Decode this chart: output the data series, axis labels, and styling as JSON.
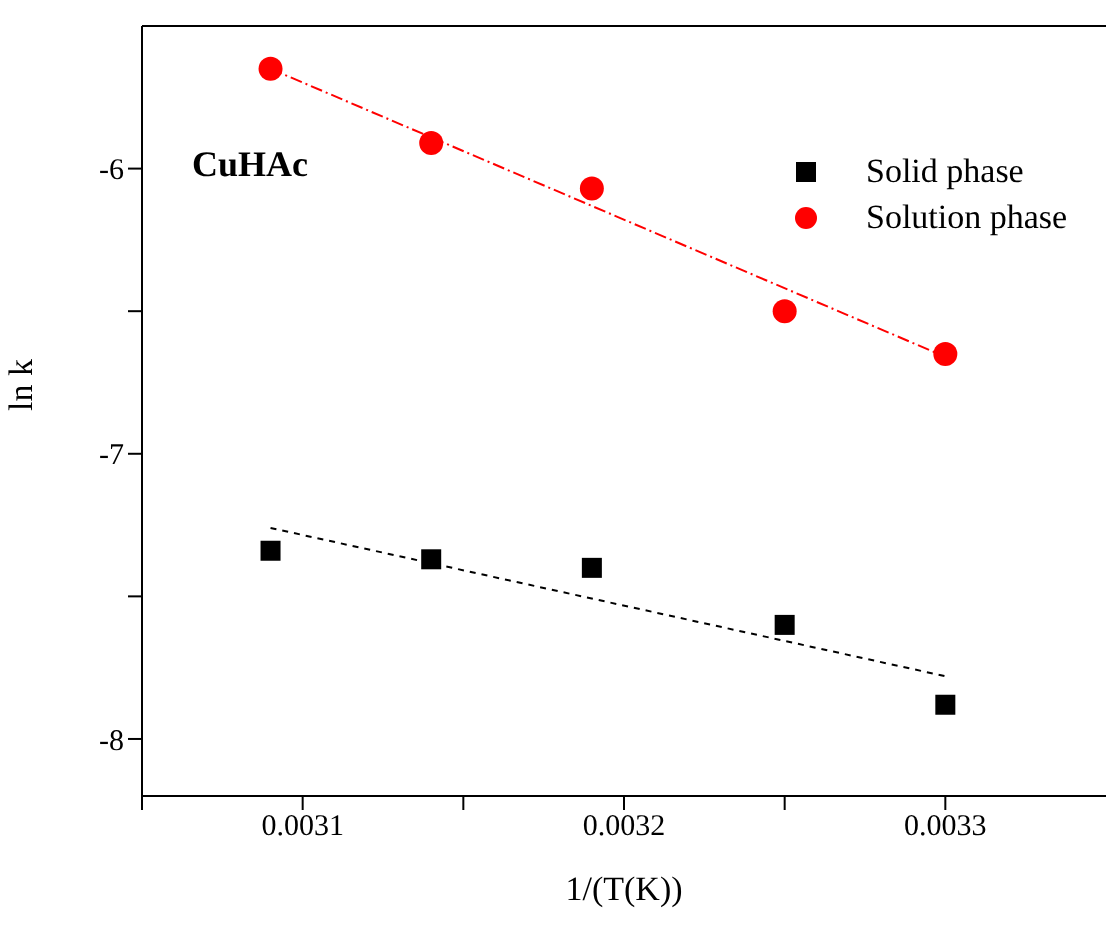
{
  "chart_data": {
    "type": "scatter",
    "xlabel": "1/(T(K))",
    "ylabel": "ln k",
    "annotations": [
      "CuHAc"
    ],
    "xlim": [
      0.00305,
      0.00335
    ],
    "xticks": [
      {
        "value": 0.00305,
        "label": null
      },
      0.0031,
      {
        "value": 0.00315,
        "label": null
      },
      0.0032,
      {
        "value": 0.00325,
        "label": null
      },
      0.0033
    ],
    "ylim": [
      -8.2,
      -5.5
    ],
    "yticks": [
      -8,
      {
        "value": -7.5,
        "label": null
      },
      -7,
      {
        "value": -6.5,
        "label": null
      },
      -6
    ],
    "grid": false,
    "legend": "top right",
    "series": [
      {
        "name": "Solid phase",
        "marker": "square",
        "color": "#000000",
        "x": [
          0.00309,
          0.00314,
          0.00319,
          0.00325,
          0.0033
        ],
        "values": [
          -7.34,
          -7.37,
          -7.4,
          -7.6,
          -7.88
        ]
      },
      {
        "name": "Solution phase",
        "marker": "circle",
        "color": "#ff0000",
        "x": [
          0.00309,
          0.00314,
          0.00319,
          0.00325,
          0.0033
        ],
        "values": [
          -5.65,
          -5.91,
          -6.07,
          -6.5,
          -6.65
        ]
      },
      {
        "type": "line",
        "marker": "none",
        "line_style": "dotted",
        "color": "#000000",
        "x": [
          0.00309,
          0.0033
        ],
        "values": [
          -7.26,
          -7.78
        ]
      },
      {
        "type": "line",
        "marker": "none",
        "line_style": "dashed",
        "color": "#ff0000",
        "x": [
          0.00309,
          0.0033
        ],
        "values": [
          -5.65,
          -6.66
        ]
      }
    ]
  }
}
